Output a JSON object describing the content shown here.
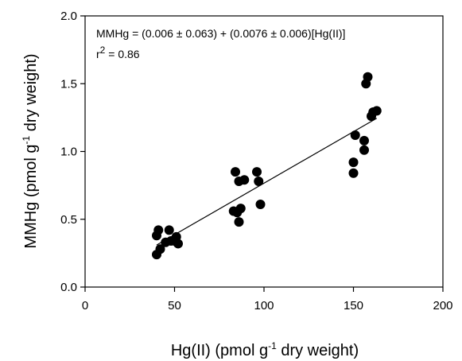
{
  "chart_data": {
    "type": "scatter",
    "xlabel": {
      "pre": "Hg(II) (pmol g",
      "sup": "-1",
      "post": " dry weight)"
    },
    "ylabel": {
      "pre": "MMHg (pmol g",
      "sup": "-1",
      "post": " dry weight)"
    },
    "xlim": [
      0,
      200
    ],
    "ylim": [
      0.0,
      2.0
    ],
    "x_ticks": [
      0,
      50,
      100,
      150,
      200
    ],
    "y_ticks": [
      0.0,
      0.5,
      1.0,
      1.5,
      2.0
    ],
    "x_tick_labels": [
      "0",
      "50",
      "100",
      "150",
      "200"
    ],
    "y_tick_labels": [
      "0.0",
      "0.5",
      "1.0",
      "1.5",
      "2.0"
    ],
    "grid": false,
    "marker_color": "#000000",
    "series": [
      {
        "points": [
          [
            40,
            0.24
          ],
          [
            40,
            0.38
          ],
          [
            41,
            0.42
          ],
          [
            42,
            0.28
          ],
          [
            45,
            0.33
          ],
          [
            47,
            0.42
          ],
          [
            48,
            0.34
          ],
          [
            50,
            0.34
          ],
          [
            51,
            0.37
          ],
          [
            52,
            0.32
          ],
          [
            83,
            0.56
          ],
          [
            84,
            0.85
          ],
          [
            85,
            0.55
          ],
          [
            86,
            0.48
          ],
          [
            86,
            0.78
          ],
          [
            87,
            0.58
          ],
          [
            89,
            0.79
          ],
          [
            96,
            0.85
          ],
          [
            97,
            0.78
          ],
          [
            98,
            0.61
          ],
          [
            150,
            0.84
          ],
          [
            150,
            0.92
          ],
          [
            151,
            1.12
          ],
          [
            156,
            1.01
          ],
          [
            156,
            1.08
          ],
          [
            157,
            1.5
          ],
          [
            158,
            1.55
          ],
          [
            160,
            1.26
          ],
          [
            161,
            1.29
          ],
          [
            163,
            1.3
          ]
        ]
      }
    ],
    "fit_line": {
      "x": [
        40,
        163
      ],
      "y": [
        0.31,
        1.245
      ]
    },
    "annotations": {
      "equation": "MMHg = (0.006 ± 0.063) + (0.0076 ± 0.006)[Hg(II)]",
      "r2_base": "r",
      "r2_sup": "2",
      "r2_value": " = 0.86"
    }
  }
}
